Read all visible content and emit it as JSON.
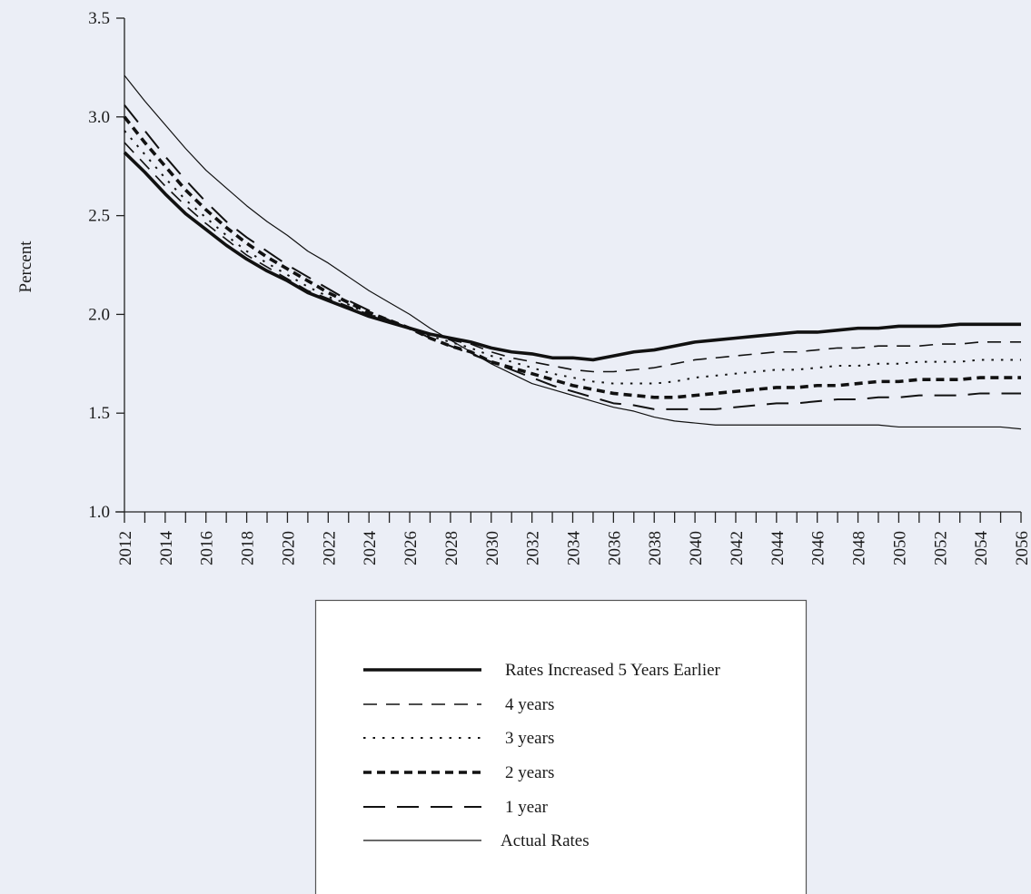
{
  "chart_data": {
    "type": "line",
    "title": "",
    "xlabel": "",
    "ylabel": "Percent",
    "ylim": [
      1.0,
      3.5
    ],
    "y_ticks": [
      "1.0",
      "1.5",
      "2.0",
      "2.5",
      "3.0",
      "3.5"
    ],
    "x": [
      2012,
      2013,
      2014,
      2015,
      2016,
      2017,
      2018,
      2019,
      2020,
      2021,
      2022,
      2023,
      2024,
      2025,
      2026,
      2027,
      2028,
      2029,
      2030,
      2031,
      2032,
      2033,
      2034,
      2035,
      2036,
      2037,
      2038,
      2039,
      2040,
      2041,
      2042,
      2043,
      2044,
      2045,
      2046,
      2047,
      2048,
      2049,
      2050,
      2051,
      2052,
      2053,
      2054,
      2055,
      2056
    ],
    "x_tick_labels": [
      "2012",
      "2014",
      "2016",
      "2018",
      "2020",
      "2022",
      "2024",
      "2026",
      "2028",
      "2030",
      "2032",
      "2034",
      "2036",
      "2038",
      "2040",
      "2042",
      "2044",
      "2046",
      "2048",
      "2050",
      "2052",
      "2054",
      "2056"
    ],
    "grid": false,
    "legend_position": "bottom",
    "series": [
      {
        "name": "Rates Increased 5 Years Earlier",
        "style": "thick-solid",
        "values": [
          2.82,
          2.72,
          2.61,
          2.51,
          2.43,
          2.35,
          2.28,
          2.22,
          2.17,
          2.11,
          2.07,
          2.03,
          1.99,
          1.96,
          1.93,
          1.9,
          1.88,
          1.86,
          1.83,
          1.81,
          1.8,
          1.78,
          1.78,
          1.77,
          1.79,
          1.81,
          1.82,
          1.84,
          1.86,
          1.87,
          1.88,
          1.89,
          1.9,
          1.91,
          1.91,
          1.92,
          1.93,
          1.93,
          1.94,
          1.94,
          1.94,
          1.95,
          1.95,
          1.95,
          1.95
        ]
      },
      {
        "name": "4 years",
        "style": "dashed",
        "values": [
          2.87,
          2.76,
          2.65,
          2.55,
          2.46,
          2.38,
          2.3,
          2.24,
          2.18,
          2.12,
          2.08,
          2.04,
          2.0,
          1.96,
          1.93,
          1.9,
          1.87,
          1.85,
          1.81,
          1.78,
          1.76,
          1.74,
          1.72,
          1.71,
          1.71,
          1.72,
          1.73,
          1.75,
          1.77,
          1.78,
          1.79,
          1.8,
          1.81,
          1.81,
          1.82,
          1.83,
          1.83,
          1.84,
          1.84,
          1.84,
          1.85,
          1.85,
          1.86,
          1.86,
          1.86
        ]
      },
      {
        "name": "3 years",
        "style": "dotted",
        "values": [
          2.93,
          2.81,
          2.69,
          2.58,
          2.49,
          2.4,
          2.32,
          2.26,
          2.2,
          2.14,
          2.09,
          2.05,
          2.0,
          1.97,
          1.93,
          1.89,
          1.86,
          1.83,
          1.79,
          1.76,
          1.73,
          1.7,
          1.68,
          1.66,
          1.65,
          1.65,
          1.65,
          1.66,
          1.68,
          1.69,
          1.7,
          1.71,
          1.72,
          1.72,
          1.73,
          1.74,
          1.74,
          1.75,
          1.75,
          1.76,
          1.76,
          1.76,
          1.77,
          1.77,
          1.77
        ]
      },
      {
        "name": "2 years",
        "style": "thick-dashed",
        "values": [
          3.0,
          2.87,
          2.75,
          2.63,
          2.53,
          2.44,
          2.36,
          2.29,
          2.23,
          2.17,
          2.11,
          2.06,
          2.01,
          1.97,
          1.93,
          1.88,
          1.84,
          1.81,
          1.76,
          1.73,
          1.7,
          1.67,
          1.64,
          1.62,
          1.6,
          1.59,
          1.58,
          1.58,
          1.59,
          1.6,
          1.61,
          1.62,
          1.63,
          1.63,
          1.64,
          1.64,
          1.65,
          1.66,
          1.66,
          1.67,
          1.67,
          1.67,
          1.68,
          1.68,
          1.68
        ]
      },
      {
        "name": "1 year",
        "style": "long-dashed",
        "values": [
          3.06,
          2.93,
          2.8,
          2.68,
          2.57,
          2.47,
          2.39,
          2.32,
          2.25,
          2.19,
          2.13,
          2.07,
          2.02,
          1.97,
          1.93,
          1.88,
          1.84,
          1.8,
          1.76,
          1.72,
          1.68,
          1.64,
          1.61,
          1.58,
          1.55,
          1.54,
          1.52,
          1.52,
          1.52,
          1.52,
          1.53,
          1.54,
          1.55,
          1.55,
          1.56,
          1.57,
          1.57,
          1.58,
          1.58,
          1.59,
          1.59,
          1.59,
          1.6,
          1.6,
          1.6
        ]
      },
      {
        "name": "Actual Rates",
        "style": "thin-solid",
        "values": [
          3.21,
          3.08,
          2.96,
          2.84,
          2.73,
          2.64,
          2.55,
          2.47,
          2.4,
          2.32,
          2.26,
          2.19,
          2.12,
          2.06,
          2.0,
          1.93,
          1.87,
          1.81,
          1.75,
          1.7,
          1.65,
          1.62,
          1.59,
          1.56,
          1.53,
          1.51,
          1.48,
          1.46,
          1.45,
          1.44,
          1.44,
          1.44,
          1.44,
          1.44,
          1.44,
          1.44,
          1.44,
          1.44,
          1.43,
          1.43,
          1.43,
          1.43,
          1.43,
          1.43,
          1.42
        ]
      }
    ]
  }
}
